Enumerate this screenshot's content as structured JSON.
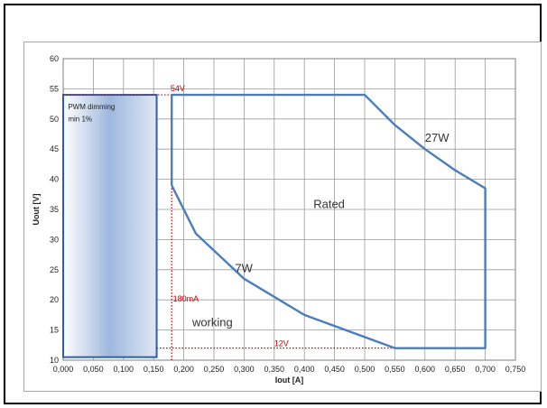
{
  "chart_data": {
    "type": "line",
    "xlabel": "Iout [A]",
    "ylabel": "Uout [V]",
    "xlim": [
      0,
      0.75
    ],
    "ylim": [
      10,
      60
    ],
    "x_ticks": [
      "0,000",
      "0,050",
      "0,100",
      "0,150",
      "0,200",
      "0,250",
      "0,300",
      "0,350",
      "0,400",
      "0,450",
      "0,500",
      "0,550",
      "0,600",
      "0,650",
      "0,700",
      "0,750"
    ],
    "y_ticks": [
      "10",
      "15",
      "20",
      "25",
      "30",
      "35",
      "40",
      "45",
      "50",
      "55",
      "60"
    ],
    "grid": true,
    "series": [
      {
        "x": [
          0.18,
          0.18,
          0.5,
          0.55,
          0.6,
          0.65,
          0.7,
          0.7,
          0.55,
          0.4,
          0.3,
          0.22,
          0.18,
          0.18
        ],
        "y": [
          39,
          54,
          54,
          49,
          45,
          41.5,
          38.5,
          12,
          12,
          17.5,
          23.5,
          31,
          39,
          39
        ],
        "color": "#4a7ebb"
      }
    ],
    "region": {
      "x": [
        0,
        0.155
      ],
      "y": [
        10.5,
        54
      ],
      "color": "#2e5fa6"
    },
    "reference_lines": [
      {
        "x": [
          0,
          0.18
        ],
        "y": [
          54,
          54
        ],
        "color": "#c00000",
        "style": "dotted"
      },
      {
        "x": [
          0.18,
          0.18
        ],
        "y": [
          10,
          39
        ],
        "color": "#c00000",
        "style": "dotted"
      },
      {
        "x": [
          0.155,
          0.55
        ],
        "y": [
          12,
          12
        ],
        "color": "#c00000",
        "style": "dotted"
      }
    ],
    "annotations": [
      {
        "text": "54V",
        "x": 0.178,
        "y": 54.6,
        "color": "#c00000",
        "size": 9
      },
      {
        "text": "PWM dimming",
        "x": 0.008,
        "y": 51.6,
        "color": "#222222",
        "size": 8
      },
      {
        "text": "min 1%",
        "x": 0.008,
        "y": 49.6,
        "color": "#222222",
        "size": 8
      },
      {
        "text": "27W",
        "x": 0.6,
        "y": 46.2,
        "color": "#333333",
        "size": 13
      },
      {
        "text": "Rated",
        "x": 0.415,
        "y": 35.2,
        "color": "#333333",
        "size": 13
      },
      {
        "text": "7W",
        "x": 0.285,
        "y": 24.6,
        "color": "#333333",
        "size": 13
      },
      {
        "text": "180mA",
        "x": 0.182,
        "y": 19.7,
        "color": "#c00000",
        "size": 9
      },
      {
        "text": "working",
        "x": 0.214,
        "y": 15.6,
        "color": "#333333",
        "size": 13
      },
      {
        "text": "12V",
        "x": 0.35,
        "y": 12.3,
        "color": "#c00000",
        "size": 9
      }
    ]
  }
}
